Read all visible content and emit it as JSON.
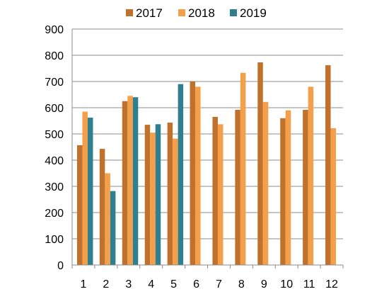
{
  "chart_data": {
    "type": "bar",
    "categories": [
      "1",
      "2",
      "3",
      "4",
      "5",
      "6",
      "7",
      "8",
      "9",
      "10",
      "11",
      "12"
    ],
    "series": [
      {
        "name": "2017",
        "color": "#c0712b",
        "values": [
          457,
          443,
          625,
          535,
          543,
          700,
          565,
          592,
          773,
          560,
          592,
          762
        ]
      },
      {
        "name": "2018",
        "color": "#f4a04a",
        "values": [
          585,
          350,
          645,
          505,
          482,
          680,
          537,
          733,
          622,
          590,
          680,
          522
        ]
      },
      {
        "name": "2019",
        "color": "#2f7f8f",
        "values": [
          562,
          282,
          640,
          537,
          690,
          null,
          null,
          null,
          null,
          null,
          null,
          null
        ]
      }
    ],
    "ylim": [
      0,
      900
    ],
    "yticks": [
      0,
      100,
      200,
      300,
      400,
      500,
      600,
      700,
      800,
      900
    ],
    "grid": true,
    "legend_position": "top"
  }
}
